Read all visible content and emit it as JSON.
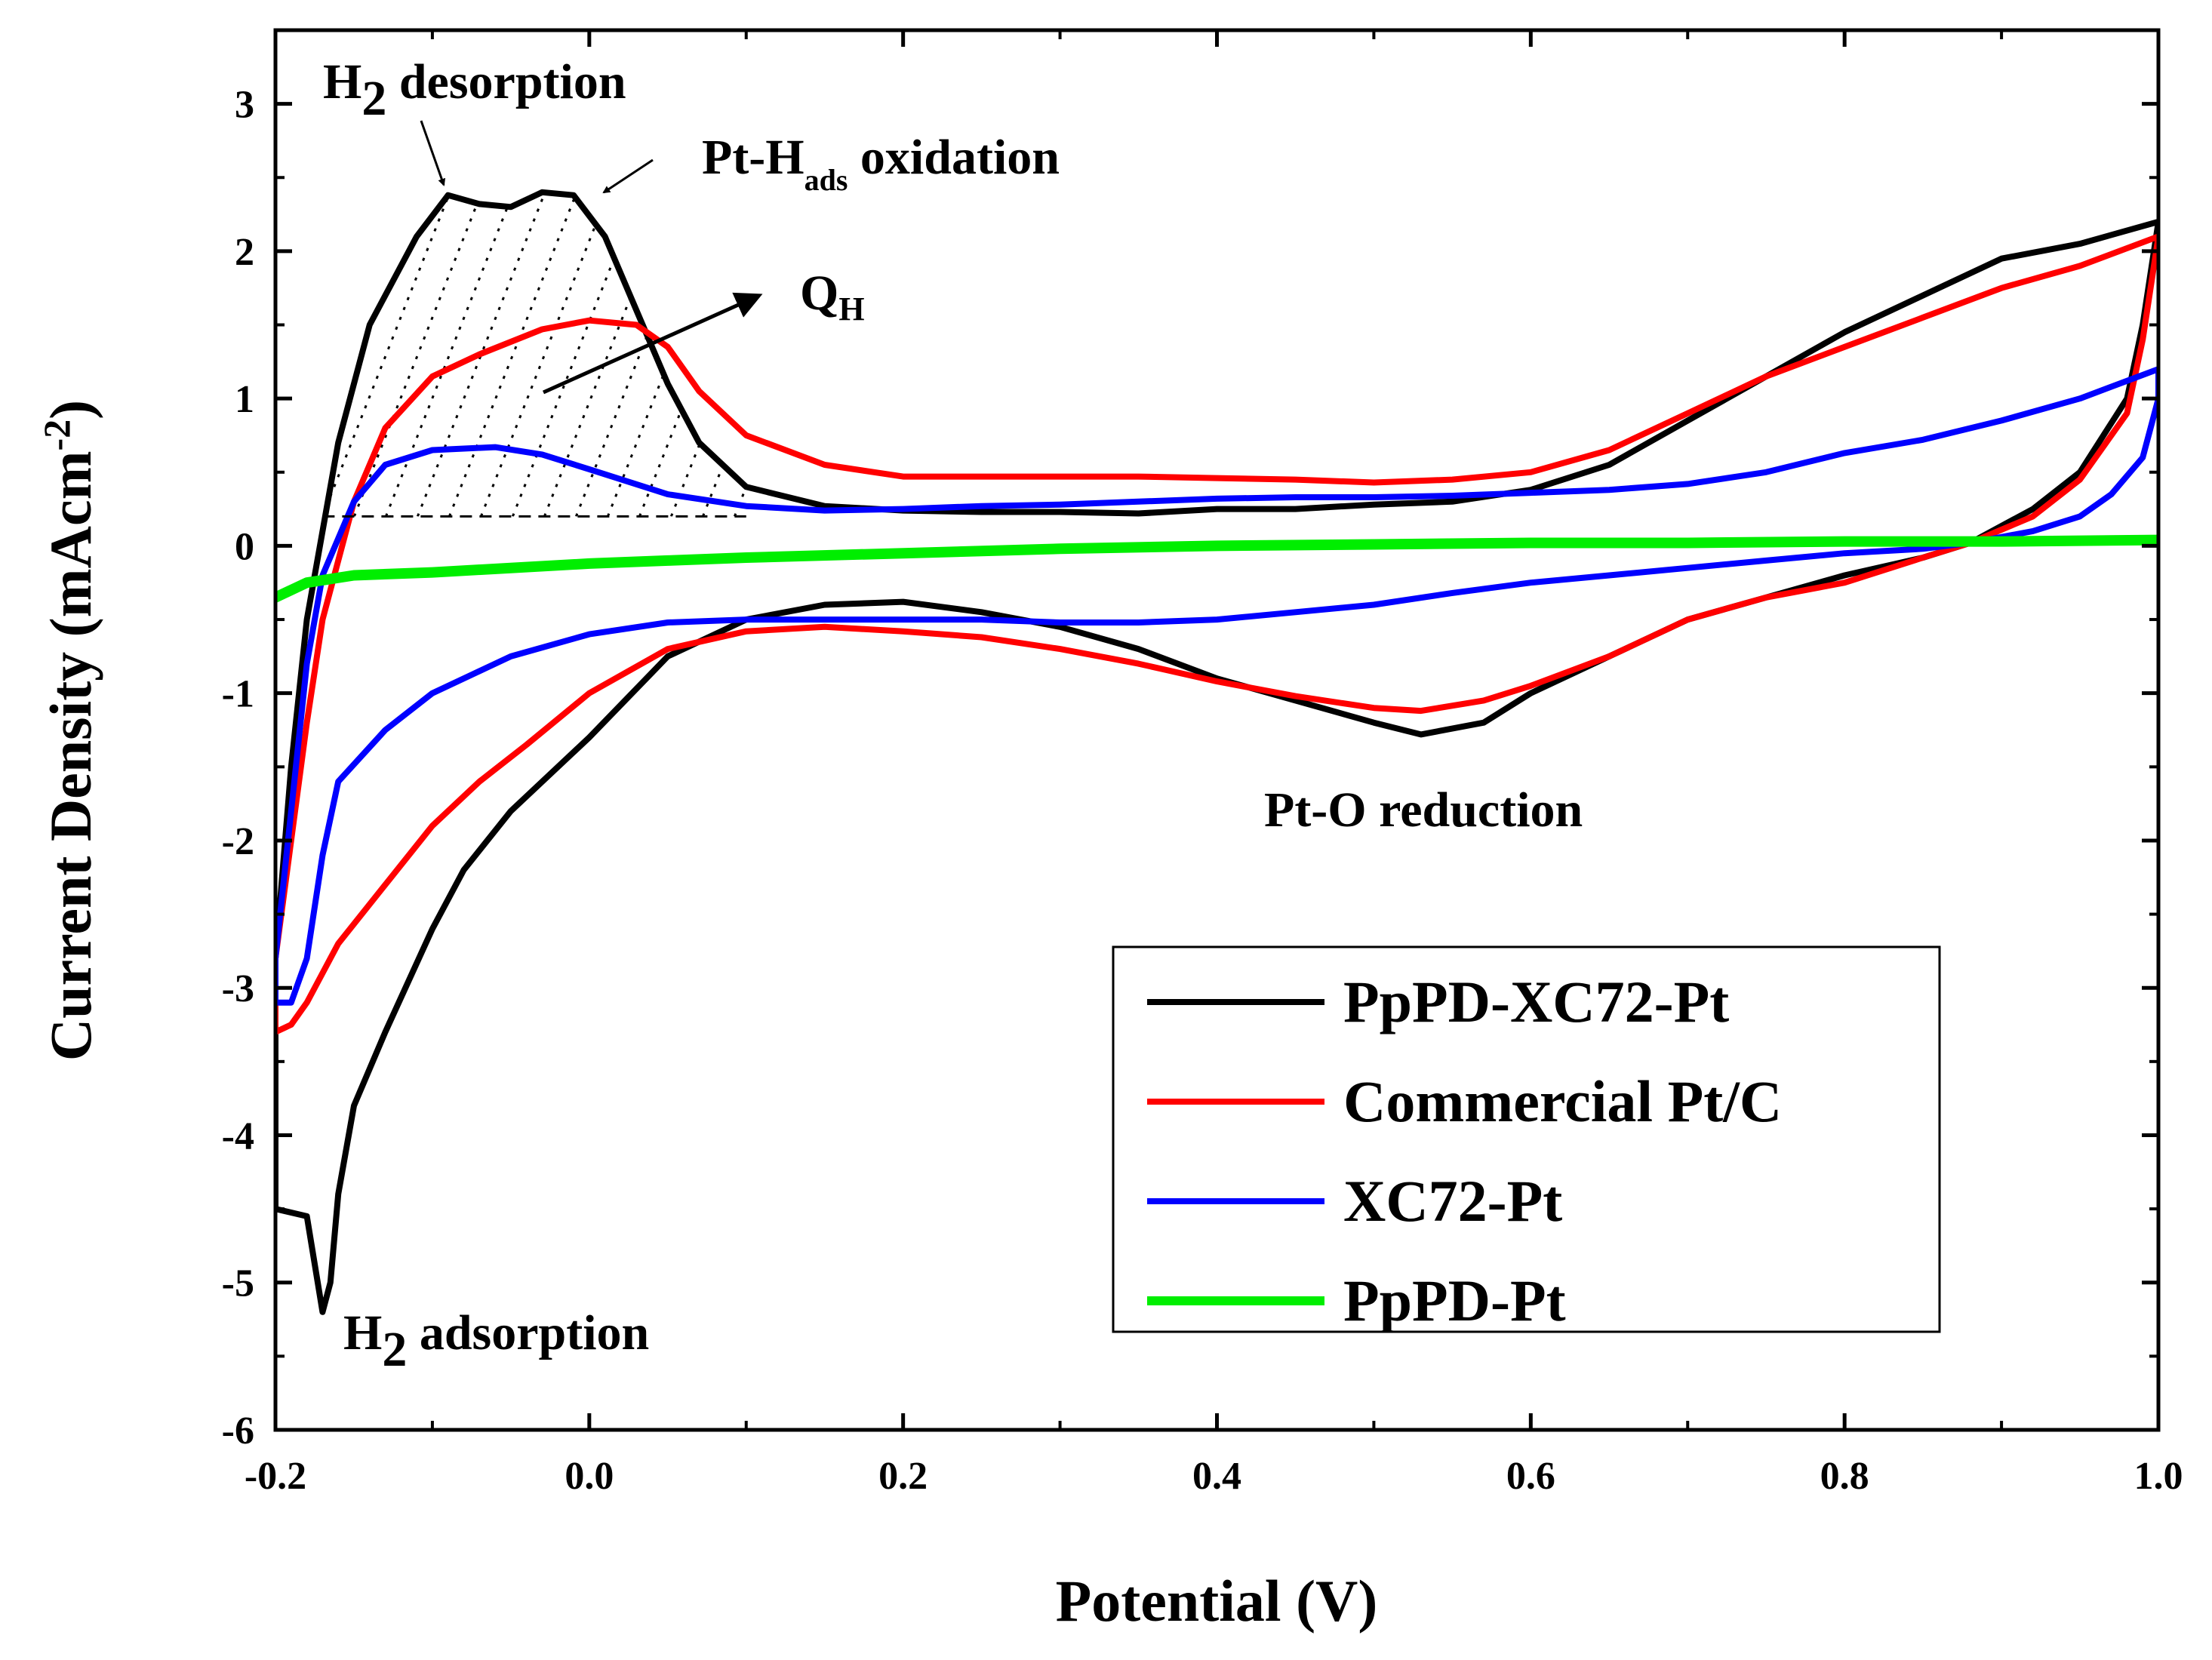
{
  "chart_data": {
    "type": "line",
    "title": "",
    "xlabel": "Potential (V)",
    "ylabel_main": "Current Density (mAcm",
    "ylabel_sup": "-2",
    "ylabel_close": ")",
    "xlim": [
      -0.2,
      1.0
    ],
    "ylim": [
      -6,
      3.5
    ],
    "xticks": [
      -0.2,
      0.0,
      0.2,
      0.4,
      0.6,
      0.8,
      1.0
    ],
    "xtick_labels": [
      "-0.2",
      "0.0",
      "0.2",
      "0.4",
      "0.6",
      "0.8",
      "1.0"
    ],
    "yticks": [
      -6,
      -5,
      -4,
      -3,
      -2,
      -1,
      0,
      1,
      2,
      3
    ],
    "ytick_labels": [
      "-6",
      "-5",
      "-4",
      "-3",
      "-2",
      "-1",
      "0",
      "1",
      "2",
      "3"
    ],
    "legend_position": "bottom-right",
    "series": [
      {
        "name": "PpPD-XC72-Pt",
        "color": "#000000",
        "points": [
          [
            -0.2,
            -4.5
          ],
          [
            -0.18,
            -4.55
          ],
          [
            -0.17,
            -5.2
          ],
          [
            -0.165,
            -5.0
          ],
          [
            -0.16,
            -4.4
          ],
          [
            -0.15,
            -3.8
          ],
          [
            -0.13,
            -3.3
          ],
          [
            -0.1,
            -2.6
          ],
          [
            -0.08,
            -2.2
          ],
          [
            -0.05,
            -1.8
          ],
          [
            0.0,
            -1.3
          ],
          [
            0.05,
            -0.75
          ],
          [
            0.1,
            -0.5
          ],
          [
            0.15,
            -0.4
          ],
          [
            0.2,
            -0.38
          ],
          [
            0.25,
            -0.45
          ],
          [
            0.3,
            -0.55
          ],
          [
            0.35,
            -0.7
          ],
          [
            0.4,
            -0.9
          ],
          [
            0.45,
            -1.05
          ],
          [
            0.5,
            -1.2
          ],
          [
            0.53,
            -1.28
          ],
          [
            0.57,
            -1.2
          ],
          [
            0.6,
            -1.0
          ],
          [
            0.65,
            -0.75
          ],
          [
            0.7,
            -0.5
          ],
          [
            0.75,
            -0.35
          ],
          [
            0.8,
            -0.2
          ],
          [
            0.85,
            -0.08
          ],
          [
            0.88,
            0.02
          ],
          [
            0.92,
            0.25
          ],
          [
            0.95,
            0.5
          ],
          [
            0.98,
            1.0
          ],
          [
            0.99,
            1.5
          ],
          [
            1.0,
            2.2
          ],
          [
            0.95,
            2.05
          ],
          [
            0.9,
            1.95
          ],
          [
            0.85,
            1.7
          ],
          [
            0.8,
            1.45
          ],
          [
            0.75,
            1.15
          ],
          [
            0.7,
            0.85
          ],
          [
            0.65,
            0.55
          ],
          [
            0.6,
            0.38
          ],
          [
            0.55,
            0.3
          ],
          [
            0.5,
            0.28
          ],
          [
            0.45,
            0.25
          ],
          [
            0.4,
            0.25
          ],
          [
            0.35,
            0.22
          ],
          [
            0.3,
            0.23
          ],
          [
            0.25,
            0.23
          ],
          [
            0.2,
            0.24
          ],
          [
            0.15,
            0.27
          ],
          [
            0.1,
            0.4
          ],
          [
            0.07,
            0.7
          ],
          [
            0.05,
            1.1
          ],
          [
            0.03,
            1.6
          ],
          [
            0.01,
            2.1
          ],
          [
            -0.01,
            2.38
          ],
          [
            -0.03,
            2.4
          ],
          [
            -0.05,
            2.3
          ],
          [
            -0.07,
            2.32
          ],
          [
            -0.09,
            2.38
          ],
          [
            -0.11,
            2.1
          ],
          [
            -0.14,
            1.5
          ],
          [
            -0.16,
            0.7
          ],
          [
            -0.18,
            -0.5
          ],
          [
            -0.19,
            -1.5
          ],
          [
            -0.2,
            -2.8
          ]
        ]
      },
      {
        "name": "Commercial Pt/C",
        "color": "#ff0000",
        "points": [
          [
            -0.2,
            -3.3
          ],
          [
            -0.19,
            -3.25
          ],
          [
            -0.18,
            -3.1
          ],
          [
            -0.16,
            -2.7
          ],
          [
            -0.13,
            -2.3
          ],
          [
            -0.1,
            -1.9
          ],
          [
            -0.07,
            -1.6
          ],
          [
            -0.04,
            -1.35
          ],
          [
            0.0,
            -1.0
          ],
          [
            0.05,
            -0.7
          ],
          [
            0.1,
            -0.58
          ],
          [
            0.15,
            -0.55
          ],
          [
            0.2,
            -0.58
          ],
          [
            0.25,
            -0.62
          ],
          [
            0.3,
            -0.7
          ],
          [
            0.35,
            -0.8
          ],
          [
            0.4,
            -0.92
          ],
          [
            0.45,
            -1.02
          ],
          [
            0.5,
            -1.1
          ],
          [
            0.53,
            -1.12
          ],
          [
            0.57,
            -1.05
          ],
          [
            0.6,
            -0.95
          ],
          [
            0.65,
            -0.75
          ],
          [
            0.7,
            -0.5
          ],
          [
            0.75,
            -0.35
          ],
          [
            0.8,
            -0.25
          ],
          [
            0.85,
            -0.08
          ],
          [
            0.88,
            0.02
          ],
          [
            0.92,
            0.2
          ],
          [
            0.95,
            0.45
          ],
          [
            0.98,
            0.9
          ],
          [
            0.99,
            1.4
          ],
          [
            1.0,
            2.1
          ],
          [
            0.95,
            1.9
          ],
          [
            0.9,
            1.75
          ],
          [
            0.85,
            1.55
          ],
          [
            0.8,
            1.35
          ],
          [
            0.75,
            1.15
          ],
          [
            0.7,
            0.9
          ],
          [
            0.65,
            0.65
          ],
          [
            0.6,
            0.5
          ],
          [
            0.55,
            0.45
          ],
          [
            0.5,
            0.43
          ],
          [
            0.45,
            0.45
          ],
          [
            0.4,
            0.46
          ],
          [
            0.35,
            0.47
          ],
          [
            0.3,
            0.47
          ],
          [
            0.25,
            0.47
          ],
          [
            0.2,
            0.47
          ],
          [
            0.15,
            0.55
          ],
          [
            0.1,
            0.75
          ],
          [
            0.07,
            1.05
          ],
          [
            0.05,
            1.35
          ],
          [
            0.03,
            1.5
          ],
          [
            0.0,
            1.53
          ],
          [
            -0.03,
            1.47
          ],
          [
            -0.07,
            1.3
          ],
          [
            -0.1,
            1.15
          ],
          [
            -0.13,
            0.8
          ],
          [
            -0.15,
            0.3
          ],
          [
            -0.17,
            -0.5
          ],
          [
            -0.18,
            -1.2
          ],
          [
            -0.19,
            -2.0
          ],
          [
            -0.2,
            -2.8
          ]
        ]
      },
      {
        "name": "XC72-Pt",
        "color": "#0000ff",
        "points": [
          [
            -0.2,
            -3.1
          ],
          [
            -0.19,
            -3.1
          ],
          [
            -0.18,
            -2.8
          ],
          [
            -0.17,
            -2.1
          ],
          [
            -0.16,
            -1.6
          ],
          [
            -0.13,
            -1.25
          ],
          [
            -0.1,
            -1.0
          ],
          [
            -0.05,
            -0.75
          ],
          [
            0.0,
            -0.6
          ],
          [
            0.05,
            -0.52
          ],
          [
            0.1,
            -0.5
          ],
          [
            0.15,
            -0.5
          ],
          [
            0.2,
            -0.5
          ],
          [
            0.25,
            -0.5
          ],
          [
            0.3,
            -0.52
          ],
          [
            0.35,
            -0.52
          ],
          [
            0.4,
            -0.5
          ],
          [
            0.45,
            -0.45
          ],
          [
            0.5,
            -0.4
          ],
          [
            0.55,
            -0.32
          ],
          [
            0.6,
            -0.25
          ],
          [
            0.65,
            -0.2
          ],
          [
            0.7,
            -0.15
          ],
          [
            0.75,
            -0.1
          ],
          [
            0.8,
            -0.05
          ],
          [
            0.85,
            -0.02
          ],
          [
            0.88,
            0.02
          ],
          [
            0.92,
            0.1
          ],
          [
            0.95,
            0.2
          ],
          [
            0.97,
            0.35
          ],
          [
            0.99,
            0.6
          ],
          [
            1.0,
            1.0
          ],
          [
            1.0,
            1.2
          ],
          [
            0.95,
            1.0
          ],
          [
            0.9,
            0.85
          ],
          [
            0.85,
            0.72
          ],
          [
            0.8,
            0.63
          ],
          [
            0.75,
            0.5
          ],
          [
            0.7,
            0.42
          ],
          [
            0.65,
            0.38
          ],
          [
            0.6,
            0.36
          ],
          [
            0.55,
            0.34
          ],
          [
            0.5,
            0.33
          ],
          [
            0.45,
            0.33
          ],
          [
            0.4,
            0.32
          ],
          [
            0.35,
            0.3
          ],
          [
            0.3,
            0.28
          ],
          [
            0.25,
            0.27
          ],
          [
            0.2,
            0.25
          ],
          [
            0.15,
            0.24
          ],
          [
            0.1,
            0.27
          ],
          [
            0.05,
            0.35
          ],
          [
            0.0,
            0.52
          ],
          [
            -0.03,
            0.62
          ],
          [
            -0.06,
            0.67
          ],
          [
            -0.1,
            0.65
          ],
          [
            -0.13,
            0.55
          ],
          [
            -0.15,
            0.3
          ],
          [
            -0.17,
            -0.2
          ],
          [
            -0.18,
            -0.8
          ],
          [
            -0.19,
            -1.8
          ],
          [
            -0.2,
            -2.8
          ]
        ]
      },
      {
        "name": "PpPD-Pt",
        "color": "#00ee00",
        "points": [
          [
            -0.2,
            -0.35
          ],
          [
            -0.18,
            -0.25
          ],
          [
            -0.15,
            -0.2
          ],
          [
            -0.1,
            -0.18
          ],
          [
            -0.05,
            -0.15
          ],
          [
            0.0,
            -0.12
          ],
          [
            0.05,
            -0.1
          ],
          [
            0.1,
            -0.08
          ],
          [
            0.2,
            -0.05
          ],
          [
            0.3,
            -0.02
          ],
          [
            0.4,
            0.0
          ],
          [
            0.5,
            0.01
          ],
          [
            0.6,
            0.02
          ],
          [
            0.7,
            0.02
          ],
          [
            0.8,
            0.03
          ],
          [
            0.9,
            0.03
          ],
          [
            1.0,
            0.04
          ]
        ]
      }
    ],
    "baseline": {
      "x_start": -0.17,
      "x_end": 0.1,
      "y": 0.2
    },
    "annotations": {
      "h2_desorption_prefix": "H",
      "h2_desorption_sub": "2",
      "h2_desorption_suffix": " desorption",
      "pt_hads_prefix": "Pt-H",
      "pt_hads_sub": "ads",
      "pt_hads_suffix": " oxidation",
      "qh_main": "Q",
      "qh_sub": "H",
      "h2_adsorption_prefix": "H",
      "h2_adsorption_sub": "2",
      "h2_adsorption_suffix": " adsorption",
      "pt_o_reduction": "Pt-O reduction"
    }
  }
}
